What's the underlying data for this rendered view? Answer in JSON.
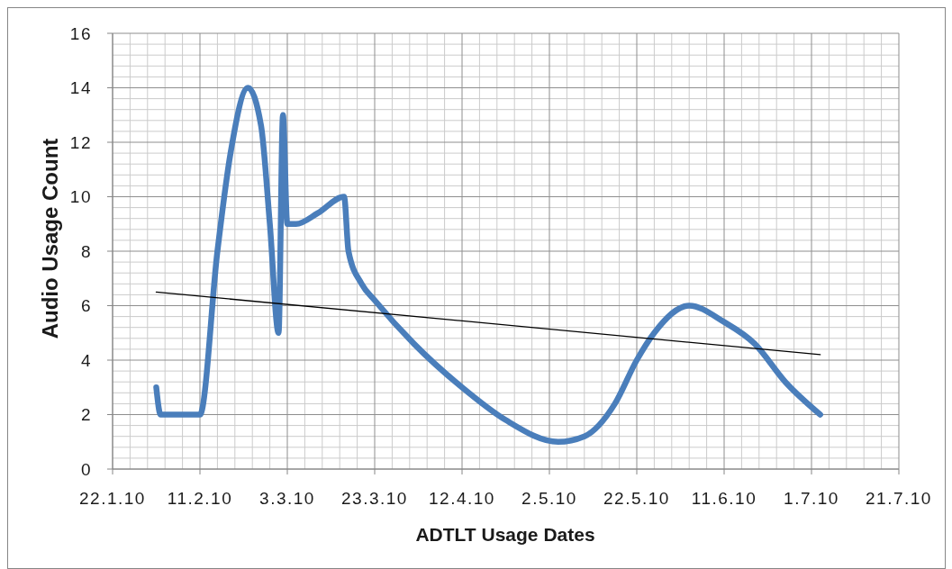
{
  "chart_data": {
    "type": "line",
    "xlabel": "ADTLT Usage Dates",
    "ylabel": "Audio Usage Count",
    "x": [
      "--02-01",
      "--02-02",
      "--02-11",
      "--02-15",
      "--02-18",
      "--02-22",
      "--02-25",
      "--02-27",
      "--03-01",
      "--03-02",
      "--03-03",
      "--03-05",
      "--03-10",
      "--03-16",
      "--03-17",
      "--03-20",
      "--03-23",
      "--04-01",
      "--04-12",
      "--04-22",
      "--05-04",
      "--05-10",
      "--05-17",
      "--05-22",
      "--05-26",
      "--06-03",
      "--06-11",
      "--06-18",
      "--06-25",
      "--07-03"
    ],
    "series": [
      {
        "color": "#4a7ebb",
        "values": [
          3,
          2,
          2,
          8,
          11.6,
          14,
          12.6,
          9,
          5,
          13,
          9,
          9,
          9.4,
          10,
          8,
          6.8,
          6.2,
          4.6,
          3,
          1.8,
          1,
          1.2,
          2.4,
          4,
          5,
          6,
          5.4,
          4.6,
          3.2,
          2
        ]
      },
      {
        "type": "line",
        "color": "#000000",
        "x": [
          "--02-01",
          "--07-03"
        ],
        "values": [
          6.5,
          4.2
        ]
      }
    ],
    "xlim": [
      "--01-22",
      "--07-21"
    ],
    "xticks": [
      {
        "value": "--01-22",
        "label": "22.1.10"
      },
      {
        "value": "--01-26",
        "label": null
      },
      {
        "value": "--01-30",
        "label": null
      },
      {
        "value": "--02-03",
        "label": null
      },
      {
        "value": "--02-07",
        "label": null
      },
      {
        "value": "--02-11",
        "label": "11.2.10"
      },
      {
        "value": "--02-15",
        "label": null
      },
      {
        "value": "--02-19",
        "label": null
      },
      {
        "value": "--02-23",
        "label": null
      },
      {
        "value": "--02-27",
        "label": null
      },
      {
        "value": "--03-03",
        "label": "3.3.10"
      },
      {
        "value": "--03-07",
        "label": null
      },
      {
        "value": "--03-11",
        "label": null
      },
      {
        "value": "--03-15",
        "label": null
      },
      {
        "value": "--03-19",
        "label": null
      },
      {
        "value": "--03-23",
        "label": "23.3.10"
      },
      {
        "value": "--03-27",
        "label": null
      },
      {
        "value": "--03-31",
        "label": null
      },
      {
        "value": "--04-04",
        "label": null
      },
      {
        "value": "--04-08",
        "label": null
      },
      {
        "value": "--04-12",
        "label": "12.4.10"
      },
      {
        "value": "--04-16",
        "label": null
      },
      {
        "value": "--04-20",
        "label": null
      },
      {
        "value": "--04-24",
        "label": null
      },
      {
        "value": "--04-28",
        "label": null
      },
      {
        "value": "--05-02",
        "label": "2.5.10"
      },
      {
        "value": "--05-06",
        "label": null
      },
      {
        "value": "--05-10",
        "label": null
      },
      {
        "value": "--05-14",
        "label": null
      },
      {
        "value": "--05-18",
        "label": null
      },
      {
        "value": "--05-22",
        "label": "22.5.10"
      },
      {
        "value": "--05-26",
        "label": null
      },
      {
        "value": "--05-30",
        "label": null
      },
      {
        "value": "--06-03",
        "label": null
      },
      {
        "value": "--06-07",
        "label": null
      },
      {
        "value": "--06-11",
        "label": "11.6.10"
      },
      {
        "value": "--06-15",
        "label": null
      },
      {
        "value": "--06-19",
        "label": null
      },
      {
        "value": "--06-23",
        "label": null
      },
      {
        "value": "--06-27",
        "label": null
      },
      {
        "value": "--07-01",
        "label": "1.7.10"
      },
      {
        "value": "--07-05",
        "label": null
      },
      {
        "value": "--07-09",
        "label": null
      },
      {
        "value": "--07-13",
        "label": null
      },
      {
        "value": "--07-17",
        "label": null
      },
      {
        "value": "--07-21",
        "label": "21.7.10"
      }
    ],
    "ylim": [
      0,
      16
    ],
    "yticks": [
      0,
      {
        "value": 0.4,
        "label": null
      },
      {
        "value": 0.8,
        "label": null
      },
      {
        "value": 1.2,
        "label": null
      },
      {
        "value": 1.6,
        "label": null
      },
      2,
      {
        "value": 2.4,
        "label": null
      },
      {
        "value": 2.8,
        "label": null
      },
      {
        "value": 3.2,
        "label": null
      },
      {
        "value": 3.6,
        "label": null
      },
      4,
      {
        "value": 4.4,
        "label": null
      },
      {
        "value": 4.8,
        "label": null
      },
      {
        "value": 5.2,
        "label": null
      },
      {
        "value": 5.6,
        "label": null
      },
      6,
      {
        "value": 6.4,
        "label": null
      },
      {
        "value": 6.8,
        "label": null
      },
      {
        "value": 7.2,
        "label": null
      },
      {
        "value": 7.6,
        "label": null
      },
      8,
      {
        "value": 8.4,
        "label": null
      },
      {
        "value": 8.8,
        "label": null
      },
      {
        "value": 9.2,
        "label": null
      },
      {
        "value": 9.6,
        "label": null
      },
      10,
      {
        "value": 10.4,
        "label": null
      },
      {
        "value": 10.8,
        "label": null
      },
      {
        "value": 11.2,
        "label": null
      },
      {
        "value": 11.6,
        "label": null
      },
      12,
      {
        "value": 12.4,
        "label": null
      },
      {
        "value": 12.8,
        "label": null
      },
      {
        "value": 13.2,
        "label": null
      },
      {
        "value": 13.6,
        "label": null
      },
      14,
      {
        "value": 14.4,
        "label": null
      },
      {
        "value": 14.8,
        "label": null
      },
      {
        "value": 15.2,
        "label": null
      },
      {
        "value": 15.6,
        "label": null
      },
      16
    ],
    "grid": true
  }
}
